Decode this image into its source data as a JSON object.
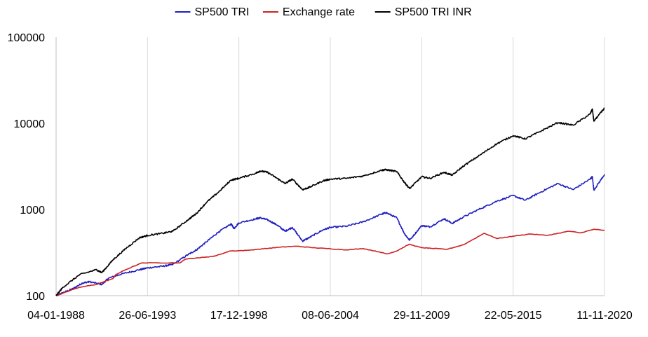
{
  "chart_data": {
    "type": "line",
    "title": "",
    "xlabel": "",
    "ylabel": "",
    "y_scale": "log",
    "ylim": [
      100,
      100000
    ],
    "xlim": [
      "1988-01-04",
      "2020-11-11"
    ],
    "y_ticks": [
      {
        "value": 100,
        "label": "100"
      },
      {
        "value": 1000,
        "label": "1000"
      },
      {
        "value": 10000,
        "label": "10000"
      },
      {
        "value": 100000,
        "label": "100000"
      }
    ],
    "x_ticks": [
      {
        "date": "1988-01-04",
        "label": "04-01-1988"
      },
      {
        "date": "1993-06-26",
        "label": "26-06-1993"
      },
      {
        "date": "1998-12-17",
        "label": "17-12-1998"
      },
      {
        "date": "2004-06-08",
        "label": "08-06-2004"
      },
      {
        "date": "2009-11-29",
        "label": "29-11-2009"
      },
      {
        "date": "2015-05-22",
        "label": "22-05-2015"
      },
      {
        "date": "2020-11-11",
        "label": "11-11-2020"
      }
    ],
    "grid": "vertical",
    "legend_position": "top",
    "series": [
      {
        "name": "SP500 TRI",
        "color": "#1f1fbf",
        "points": [
          [
            "1988-01-04",
            100
          ],
          [
            "1988-06-01",
            108
          ],
          [
            "1989-01-01",
            120
          ],
          [
            "1989-08-01",
            140
          ],
          [
            "1990-01-01",
            145
          ],
          [
            "1990-10-01",
            135
          ],
          [
            "1991-03-01",
            160
          ],
          [
            "1992-01-01",
            180
          ],
          [
            "1993-01-01",
            200
          ],
          [
            "1993-06-26",
            210
          ],
          [
            "1994-06-01",
            220
          ],
          [
            "1995-01-01",
            230
          ],
          [
            "1995-12-01",
            300
          ],
          [
            "1996-06-01",
            340
          ],
          [
            "1997-01-01",
            420
          ],
          [
            "1997-10-01",
            550
          ],
          [
            "1998-07-01",
            680
          ],
          [
            "1998-09-01",
            600
          ],
          [
            "1998-12-17",
            700
          ],
          [
            "1999-12-31",
            780
          ],
          [
            "2000-03-24",
            800
          ],
          [
            "2000-09-01",
            760
          ],
          [
            "2001-04-01",
            660
          ],
          [
            "2001-09-21",
            560
          ],
          [
            "2002-03-01",
            620
          ],
          [
            "2002-10-09",
            430
          ],
          [
            "2003-03-01",
            470
          ],
          [
            "2003-12-31",
            580
          ],
          [
            "2004-06-08",
            620
          ],
          [
            "2005-06-01",
            640
          ],
          [
            "2006-06-01",
            720
          ],
          [
            "2007-07-01",
            880
          ],
          [
            "2007-10-09",
            920
          ],
          [
            "2008-06-01",
            800
          ],
          [
            "2008-11-20",
            520
          ],
          [
            "2009-03-09",
            440
          ],
          [
            "2009-11-29",
            650
          ],
          [
            "2010-06-01",
            630
          ],
          [
            "2011-04-01",
            780
          ],
          [
            "2011-10-01",
            690
          ],
          [
            "2012-06-01",
            820
          ],
          [
            "2013-06-01",
            1020
          ],
          [
            "2014-06-01",
            1250
          ],
          [
            "2015-05-22",
            1450
          ],
          [
            "2016-02-11",
            1280
          ],
          [
            "2016-12-01",
            1550
          ],
          [
            "2018-01-26",
            2000
          ],
          [
            "2018-12-24",
            1700
          ],
          [
            "2019-12-31",
            2250
          ],
          [
            "2020-02-19",
            2400
          ],
          [
            "2020-03-23",
            1680
          ],
          [
            "2020-11-11",
            2550
          ]
        ]
      },
      {
        "name": "Exchange rate",
        "color": "#cc2222",
        "points": [
          [
            "1988-01-04",
            100
          ],
          [
            "1989-06-01",
            125
          ],
          [
            "1990-06-01",
            135
          ],
          [
            "1991-06-01",
            158
          ],
          [
            "1991-08-01",
            175
          ],
          [
            "1992-03-01",
            200
          ],
          [
            "1993-03-01",
            240
          ],
          [
            "1995-06-01",
            240
          ],
          [
            "1995-10-01",
            265
          ],
          [
            "1996-06-01",
            275
          ],
          [
            "1997-06-01",
            285
          ],
          [
            "1997-12-01",
            305
          ],
          [
            "1998-06-01",
            330
          ],
          [
            "1999-06-01",
            335
          ],
          [
            "2000-06-01",
            350
          ],
          [
            "2001-06-01",
            365
          ],
          [
            "2002-06-01",
            375
          ],
          [
            "2003-06-01",
            360
          ],
          [
            "2004-06-08",
            350
          ],
          [
            "2005-06-01",
            340
          ],
          [
            "2006-06-01",
            352
          ],
          [
            "2007-06-01",
            320
          ],
          [
            "2007-11-01",
            305
          ],
          [
            "2008-06-01",
            330
          ],
          [
            "2009-03-01",
            395
          ],
          [
            "2009-11-29",
            360
          ],
          [
            "2010-06-01",
            355
          ],
          [
            "2011-06-01",
            345
          ],
          [
            "2012-06-01",
            390
          ],
          [
            "2013-08-28",
            530
          ],
          [
            "2014-06-01",
            460
          ],
          [
            "2015-05-22",
            490
          ],
          [
            "2016-06-01",
            520
          ],
          [
            "2017-06-01",
            500
          ],
          [
            "2018-10-01",
            560
          ],
          [
            "2019-06-01",
            535
          ],
          [
            "2020-04-01",
            590
          ],
          [
            "2020-11-11",
            570
          ]
        ]
      },
      {
        "name": "SP500 TRI INR",
        "color": "#000000",
        "points": [
          [
            "1988-01-04",
            100
          ],
          [
            "1988-06-01",
            125
          ],
          [
            "1989-06-01",
            175
          ],
          [
            "1990-06-01",
            200
          ],
          [
            "1990-10-01",
            185
          ],
          [
            "1991-06-01",
            260
          ],
          [
            "1992-03-01",
            350
          ],
          [
            "1993-01-01",
            470
          ],
          [
            "1993-06-26",
            500
          ],
          [
            "1994-06-01",
            530
          ],
          [
            "1995-01-01",
            560
          ],
          [
            "1995-12-01",
            760
          ],
          [
            "1996-06-01",
            900
          ],
          [
            "1997-01-01",
            1200
          ],
          [
            "1997-10-01",
            1600
          ],
          [
            "1998-07-01",
            2200
          ],
          [
            "1998-12-17",
            2300
          ],
          [
            "1999-12-31",
            2650
          ],
          [
            "2000-03-24",
            2800
          ],
          [
            "2000-09-01",
            2700
          ],
          [
            "2001-04-01",
            2300
          ],
          [
            "2001-09-21",
            2000
          ],
          [
            "2002-03-01",
            2250
          ],
          [
            "2002-10-09",
            1700
          ],
          [
            "2003-03-01",
            1800
          ],
          [
            "2003-12-31",
            2150
          ],
          [
            "2004-06-08",
            2250
          ],
          [
            "2005-06-01",
            2300
          ],
          [
            "2006-06-01",
            2450
          ],
          [
            "2007-07-01",
            2850
          ],
          [
            "2007-10-09",
            2900
          ],
          [
            "2008-06-01",
            2750
          ],
          [
            "2008-11-20",
            2050
          ],
          [
            "2009-03-09",
            1750
          ],
          [
            "2009-11-29",
            2400
          ],
          [
            "2010-06-01",
            2300
          ],
          [
            "2011-04-01",
            2700
          ],
          [
            "2011-10-01",
            2500
          ],
          [
            "2012-06-01",
            3200
          ],
          [
            "2013-06-01",
            4300
          ],
          [
            "2014-06-01",
            5800
          ],
          [
            "2015-05-22",
            7200
          ],
          [
            "2016-02-11",
            6600
          ],
          [
            "2016-12-01",
            7900
          ],
          [
            "2018-01-26",
            10200
          ],
          [
            "2018-12-24",
            9500
          ],
          [
            "2019-12-31",
            12800
          ],
          [
            "2020-02-19",
            14600
          ],
          [
            "2020-03-23",
            10600
          ],
          [
            "2020-11-11",
            15000
          ]
        ]
      }
    ]
  }
}
